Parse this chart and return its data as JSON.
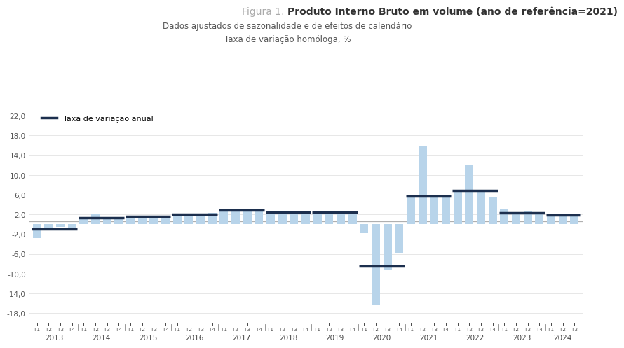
{
  "title_gray": "Figura 1. ",
  "title_bold": "Produto Interno Bruto em volume (ano de referência=2021)",
  "subtitle1": "Dados ajustados de sazonalidade e de efeitos de calendário",
  "subtitle2": "Taxa de variação homóloga, %",
  "legend_label": "Taxa de variação anual",
  "bar_color": "#b8d4ea",
  "annual_line_color": "#1c2f4e",
  "hline_color": "#b0b0b0",
  "background_color": "#ffffff",
  "ylim_min": -20,
  "ylim_max": 24,
  "ytick_values": [
    -18,
    -14,
    -10,
    -6,
    -2,
    2,
    6,
    10,
    14,
    18,
    22
  ],
  "quarterly_values": [
    -2.8,
    -0.8,
    -0.5,
    -0.9,
    1.0,
    2.0,
    1.5,
    1.3,
    1.5,
    1.8,
    1.7,
    1.6,
    1.9,
    2.0,
    2.1,
    2.4,
    3.0,
    3.0,
    2.9,
    2.8,
    2.7,
    2.5,
    2.4,
    2.3,
    2.5,
    2.5,
    2.5,
    2.5,
    -1.8,
    -16.4,
    -9.2,
    -5.7,
    5.9,
    16.0,
    6.0,
    5.8,
    6.9,
    12.0,
    7.0,
    5.4,
    3.0,
    2.5,
    2.6,
    2.3,
    1.8,
    2.0,
    2.0
  ],
  "annual_values": [
    -0.9,
    1.4,
    1.6,
    2.0,
    2.9,
    2.5,
    2.5,
    -8.5,
    5.7,
    6.8,
    2.3,
    1.9
  ],
  "years": [
    "2013",
    "2014",
    "2015",
    "2016",
    "2017",
    "2018",
    "2019",
    "2020",
    "2021",
    "2022",
    "2023",
    "2024"
  ],
  "quarters_per_year": [
    4,
    4,
    4,
    4,
    4,
    4,
    4,
    4,
    4,
    4,
    4,
    3
  ]
}
